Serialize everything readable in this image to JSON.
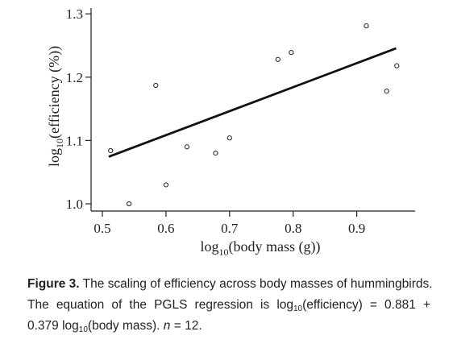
{
  "chart_data": {
    "type": "scatter",
    "xlabel": "log10(body mass (g))",
    "xlabel_base": "log",
    "xlabel_sub": "10",
    "xlabel_rest": "(body mass (g))",
    "ylabel": "log10(efficiency (%))",
    "ylabel_base": "log",
    "ylabel_sub": "10",
    "ylabel_rest": "(efficiency (%))",
    "xlim": [
      0.48,
      0.98
    ],
    "ylim": [
      0.98,
      1.31
    ],
    "x_ticks": [
      0.5,
      0.6,
      0.7,
      0.8,
      0.9
    ],
    "x_tick_labels": [
      "0.5",
      "0.6",
      "0.7",
      "0.8",
      "0.9"
    ],
    "y_ticks": [
      1.0,
      1.1,
      1.2,
      1.3
    ],
    "y_tick_labels": [
      "1.0",
      "1.1",
      "1.2",
      "1.3"
    ],
    "grid": false,
    "points": [
      {
        "x": 0.513,
        "y": 1.084
      },
      {
        "x": 0.542,
        "y": 1.0
      },
      {
        "x": 0.584,
        "y": 1.187
      },
      {
        "x": 0.6,
        "y": 1.03
      },
      {
        "x": 0.633,
        "y": 1.09
      },
      {
        "x": 0.678,
        "y": 1.08
      },
      {
        "x": 0.7,
        "y": 1.104
      },
      {
        "x": 0.776,
        "y": 1.228
      },
      {
        "x": 0.797,
        "y": 1.239
      },
      {
        "x": 0.915,
        "y": 1.281
      },
      {
        "x": 0.947,
        "y": 1.178
      },
      {
        "x": 0.963,
        "y": 1.218
      }
    ],
    "regression": {
      "intercept": 0.881,
      "slope": 0.379,
      "x_start": 0.51,
      "x_end": 0.962
    }
  },
  "caption": {
    "figure_label": "Figure 3.",
    "line1_text": "The scaling of efficiency across body masses of hummingbirds.",
    "line2_a": "The equation of the PGLS regression is log",
    "line2_sub": "10",
    "line2_b": "(efficiency) = 0.881 +",
    "line3_a": "0.379 log",
    "line3_sub": "10",
    "line3_b": "(body mass). ",
    "line3_n": "n",
    "line3_c": " = 12."
  },
  "colors": {
    "ink": "#231f20",
    "line": "#111111"
  }
}
